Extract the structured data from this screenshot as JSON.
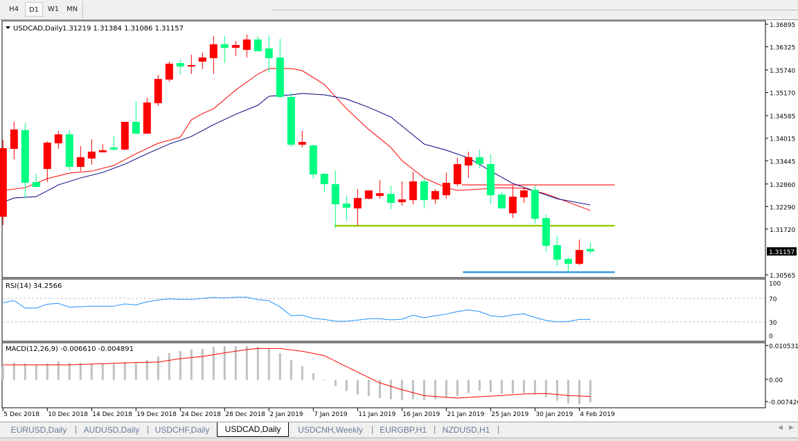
{
  "toolbar": {
    "timeframes": [
      {
        "label": "H4",
        "active": false
      },
      {
        "label": "D1",
        "active": true
      },
      {
        "label": "W1",
        "active": false
      },
      {
        "label": "MN",
        "active": false
      }
    ]
  },
  "chart_header": {
    "symbol": "USDCAD,Daily",
    "ohlc": "1.31219 1.31384 1.31086 1.31157"
  },
  "rsi_header": "RSI(14) 34.2566",
  "macd_header": "MACD(12,26,9) -0.006610 -0.004891",
  "tabs": [
    {
      "label": "EURUSD,Daily",
      "active": false
    },
    {
      "label": "AUDUSD,Daily",
      "active": false
    },
    {
      "label": "USDCHF,Daily",
      "active": false
    },
    {
      "label": "USDCAD,Daily",
      "active": true
    },
    {
      "label": "USDCNH,Weekly",
      "active": false
    },
    {
      "label": "EURGBP,H1",
      "active": false
    },
    {
      "label": "NZDUSD,H1",
      "active": false
    }
  ],
  "colors": {
    "bull": "#ff0000",
    "bear": "#00ff80",
    "ma_fast": "#ff0000",
    "ma_slow": "#000080",
    "rsi": "#1e90ff",
    "macd_hist": "#c0c0c0",
    "macd_signal": "#ff0000",
    "level_resistance": "#ff3333",
    "level_support": "#99cc00",
    "level_low": "#3399dd"
  },
  "chart_data": [
    {
      "type": "candlestick",
      "title": "USDCAD,Daily",
      "price_axis_labels": [
        "1.36895",
        "1.36325",
        "1.35740",
        "1.35170",
        "1.34585",
        "1.34015",
        "1.33445",
        "1.32860",
        "1.32290",
        "1.31720",
        "1.30565"
      ],
      "current_price": "1.31157",
      "ylim": [
        1.30565,
        1.36895
      ],
      "candles_ohlc": [
        [
          1.32033,
          1.33974,
          1.31823,
          1.33764
        ],
        [
          1.33747,
          1.34429,
          1.33484,
          1.34236
        ],
        [
          1.34219,
          1.34394,
          1.32505,
          1.3289
        ],
        [
          1.32907,
          1.33117,
          1.32785,
          1.32785
        ],
        [
          1.33239,
          1.33939,
          1.32907,
          1.33904
        ],
        [
          1.33887,
          1.34201,
          1.33747,
          1.34114
        ],
        [
          1.34114,
          1.34219,
          1.33205,
          1.33292
        ],
        [
          1.33292,
          1.33817,
          1.33187,
          1.33537
        ],
        [
          1.33502,
          1.33991,
          1.33344,
          1.33677
        ],
        [
          1.33659,
          1.33869,
          1.33659,
          1.33712
        ],
        [
          1.33782,
          1.34061,
          1.33694,
          1.33729
        ],
        [
          1.33729,
          1.34429,
          1.33712,
          1.34429
        ],
        [
          1.34429,
          1.34953,
          1.34114,
          1.34131
        ],
        [
          1.34131,
          1.35041,
          1.34131,
          1.34918
        ],
        [
          1.34901,
          1.35618,
          1.34831,
          1.35513
        ],
        [
          1.35496,
          1.3595,
          1.35443,
          1.35898
        ],
        [
          1.35915,
          1.36003,
          1.35618,
          1.35828
        ],
        [
          1.35828,
          1.36125,
          1.35636,
          1.35863
        ],
        [
          1.3595,
          1.36178,
          1.35758,
          1.36055
        ],
        [
          1.36038,
          1.36598,
          1.35636,
          1.36388
        ],
        [
          1.36388,
          1.36598,
          1.35915,
          1.363
        ],
        [
          1.363,
          1.36475,
          1.3609,
          1.3637
        ],
        [
          1.36248,
          1.36633,
          1.36055,
          1.3651
        ],
        [
          1.3651,
          1.36598,
          1.36213,
          1.36213
        ],
        [
          1.36283,
          1.36615,
          1.35671,
          1.36038
        ],
        [
          1.36055,
          1.36528,
          1.35041,
          1.35058
        ],
        [
          1.35058,
          1.35163,
          1.33799,
          1.33852
        ],
        [
          1.33852,
          1.34201,
          1.33782,
          1.33922
        ],
        [
          1.33834,
          1.33852,
          1.32995,
          1.331
        ],
        [
          1.33117,
          1.33135,
          1.32645,
          1.32855
        ],
        [
          1.32855,
          1.33205,
          1.31753,
          1.32347
        ],
        [
          1.32365,
          1.32575,
          1.31928,
          1.3226
        ],
        [
          1.32243,
          1.32732,
          1.31805,
          1.32505
        ],
        [
          1.32487,
          1.32697,
          1.3247,
          1.32697
        ],
        [
          1.32557,
          1.3296,
          1.32487,
          1.32627
        ],
        [
          1.3261,
          1.3282,
          1.32225,
          1.32382
        ],
        [
          1.324,
          1.32925,
          1.32313,
          1.3247
        ],
        [
          1.32452,
          1.3317,
          1.32347,
          1.32925
        ],
        [
          1.32925,
          1.33012,
          1.32243,
          1.32452
        ],
        [
          1.3247,
          1.32732,
          1.32347,
          1.3268
        ],
        [
          1.32575,
          1.33152,
          1.32487,
          1.3289
        ],
        [
          1.32855,
          1.33519,
          1.32802,
          1.33362
        ],
        [
          1.33327,
          1.33677,
          1.33012,
          1.33537
        ],
        [
          1.33537,
          1.33729,
          1.33257,
          1.33362
        ],
        [
          1.33362,
          1.33607,
          1.32347,
          1.32575
        ],
        [
          1.32592,
          1.32662,
          1.32243,
          1.32243
        ],
        [
          1.3212,
          1.3282,
          1.31998,
          1.3254
        ],
        [
          1.32522,
          1.32785,
          1.32382,
          1.32697
        ],
        [
          1.32715,
          1.3282,
          1.31858,
          1.3198
        ],
        [
          1.31998,
          1.32085,
          1.31141,
          1.31298
        ],
        [
          1.31316,
          1.3156,
          1.30791,
          1.30949
        ],
        [
          1.30966,
          1.31001,
          1.30633,
          1.30843
        ],
        [
          1.30843,
          1.31456,
          1.30808,
          1.31193
        ],
        [
          1.31219,
          1.31384,
          1.31086,
          1.31157
        ]
      ],
      "ma_fast": [
        [
          0,
          1.32697
        ],
        [
          2,
          1.32767
        ],
        [
          4,
          1.32995
        ],
        [
          6,
          1.33135
        ],
        [
          8,
          1.33187
        ],
        [
          10,
          1.33327
        ],
        [
          12,
          1.33624
        ],
        [
          14,
          1.33887
        ],
        [
          16,
          1.34044
        ],
        [
          17,
          1.34481
        ],
        [
          18,
          1.34639
        ],
        [
          19,
          1.34761
        ],
        [
          21,
          1.35233
        ],
        [
          23,
          1.35636
        ],
        [
          24,
          1.35776
        ],
        [
          25,
          1.35776
        ],
        [
          26,
          1.35776
        ],
        [
          27,
          1.35723
        ],
        [
          29,
          1.35373
        ],
        [
          31,
          1.34761
        ],
        [
          33,
          1.34236
        ],
        [
          35,
          1.33782
        ],
        [
          36,
          1.33449
        ],
        [
          38,
          1.33012
        ],
        [
          40,
          1.32767
        ],
        [
          41,
          1.32697
        ],
        [
          43,
          1.32732
        ],
        [
          45,
          1.32767
        ],
        [
          47,
          1.3275
        ],
        [
          49,
          1.3261
        ],
        [
          51,
          1.324
        ],
        [
          53,
          1.3219
        ]
      ],
      "ma_slow": [
        [
          0,
          1.324
        ],
        [
          1,
          1.32505
        ],
        [
          3,
          1.3254
        ],
        [
          5,
          1.32837
        ],
        [
          7,
          1.33012
        ],
        [
          9,
          1.33152
        ],
        [
          11,
          1.33362
        ],
        [
          13,
          1.33624
        ],
        [
          15,
          1.33869
        ],
        [
          17,
          1.34061
        ],
        [
          19,
          1.34359
        ],
        [
          21,
          1.34621
        ],
        [
          23,
          1.34849
        ],
        [
          24,
          1.35076
        ],
        [
          26,
          1.35111
        ],
        [
          27,
          1.35146
        ],
        [
          29,
          1.35111
        ],
        [
          31,
          1.35006
        ],
        [
          33,
          1.34796
        ],
        [
          35,
          1.34551
        ],
        [
          38,
          1.33869
        ],
        [
          40,
          1.33712
        ],
        [
          42,
          1.33519
        ],
        [
          44,
          1.33187
        ],
        [
          46,
          1.32872
        ],
        [
          48,
          1.3268
        ],
        [
          50,
          1.32487
        ],
        [
          53,
          1.3233
        ]
      ],
      "levels": [
        {
          "price": 1.32837,
          "from_index": 41.4,
          "to_index": 55.2,
          "color_key": "level_resistance"
        },
        {
          "price": 1.31805,
          "from_index": 29.9,
          "to_index": 55.2,
          "color_key": "level_support"
        },
        {
          "price": 1.30633,
          "from_index": 41.5,
          "to_index": 55.2,
          "color_key": "level_low"
        }
      ],
      "x_labels": [
        {
          "index": 0,
          "label": "5 Dec 2018"
        },
        {
          "index": 4,
          "label": "10 Dec 2018"
        },
        {
          "index": 8,
          "label": "14 Dec 2018"
        },
        {
          "index": 12,
          "label": "19 Dec 2018"
        },
        {
          "index": 16,
          "label": "24 Dec 2018"
        },
        {
          "index": 20,
          "label": "28 Dec 2018"
        },
        {
          "index": 24,
          "label": "2 Jan 2019"
        },
        {
          "index": 28,
          "label": "7 Jan 2019"
        },
        {
          "index": 32,
          "label": "11 Jan 2019"
        },
        {
          "index": 36,
          "label": "16 Jan 2019"
        },
        {
          "index": 40,
          "label": "21 Jan 2019"
        },
        {
          "index": 44,
          "label": "25 Jan 2019"
        },
        {
          "index": 48,
          "label": "30 Jan 2019"
        },
        {
          "index": 52,
          "label": "4 Feb 2019"
        }
      ]
    },
    {
      "type": "line",
      "title": "RSI(14) 34.2566",
      "ylim": [
        0,
        100
      ],
      "levels": [
        70,
        30
      ],
      "axis_labels": [
        "100",
        "70",
        "30",
        "0"
      ],
      "values": [
        62.6,
        66.5,
        53.5,
        53.5,
        60.2,
        61.4,
        55.1,
        55.9,
        56.7,
        56.7,
        56.7,
        60.6,
        59.0,
        64.1,
        67.2,
        69.2,
        68.4,
        68.4,
        70.0,
        71.6,
        70.8,
        72.0,
        72.0,
        68.0,
        66.1,
        55.5,
        40.6,
        41.4,
        35.9,
        34.3,
        31.2,
        31.2,
        33.1,
        35.5,
        35.5,
        33.5,
        34.7,
        41.4,
        37.1,
        40.6,
        43.3,
        47.6,
        50.4,
        47.6,
        40.6,
        38.6,
        42.1,
        43.7,
        37.5,
        32.5,
        30.0,
        30.8,
        34.3,
        34.26
      ]
    },
    {
      "type": "bar",
      "title": "MACD(12,26,9) -0.006610 -0.004891",
      "axis_labels": [
        "0.010531",
        "0.00",
        "-0.007426"
      ],
      "ylim": [
        -0.007426,
        0.010531
      ],
      "histogram": [
        0.00402,
        0.00504,
        0.00483,
        0.00436,
        0.00483,
        0.00545,
        0.00504,
        0.00504,
        0.00477,
        0.00469,
        0.00469,
        0.00524,
        0.00524,
        0.00585,
        0.00687,
        0.00789,
        0.00851,
        0.00891,
        0.00912,
        0.00973,
        0.00993,
        0.00993,
        0.00993,
        0.00973,
        0.00932,
        0.00789,
        0.00585,
        0.00402,
        0.00198,
        0.00014,
        -0.00184,
        -0.00326,
        -0.00428,
        -0.00475,
        -0.0053,
        -0.00571,
        -0.00592,
        -0.00571,
        -0.00592,
        -0.00571,
        -0.00523,
        -0.00469,
        -0.00388,
        -0.00326,
        -0.00367,
        -0.00408,
        -0.00408,
        -0.00388,
        -0.00428,
        -0.0051,
        -0.00612,
        -0.00694,
        -0.00714,
        -0.00661
      ],
      "signal": [
        [
          0,
          0.00443
        ],
        [
          6,
          0.00443
        ],
        [
          9,
          0.00477
        ],
        [
          12,
          0.00511
        ],
        [
          14,
          0.00524
        ],
        [
          16,
          0.00626
        ],
        [
          18,
          0.00687
        ],
        [
          20,
          0.00796
        ],
        [
          22,
          0.00891
        ],
        [
          23,
          0.00925
        ],
        [
          25,
          0.00925
        ],
        [
          27,
          0.00844
        ],
        [
          29,
          0.00714
        ],
        [
          31,
          0.00388
        ],
        [
          34,
          -0.00088
        ],
        [
          36,
          -0.00292
        ],
        [
          38,
          -0.00462
        ],
        [
          40,
          -0.00517
        ],
        [
          41,
          -0.00537
        ],
        [
          43,
          -0.00496
        ],
        [
          45,
          -0.00462
        ],
        [
          47,
          -0.00414
        ],
        [
          49,
          -0.00401
        ],
        [
          51,
          -0.00462
        ],
        [
          53,
          -0.00489
        ]
      ]
    }
  ]
}
